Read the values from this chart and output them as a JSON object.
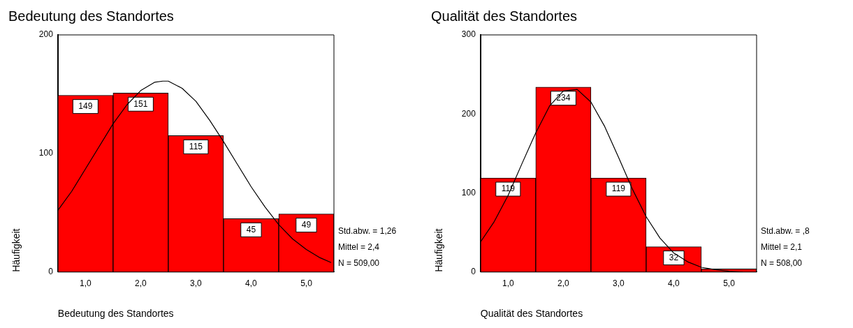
{
  "chart_data": [
    {
      "type": "histogram",
      "title": "Bedeutung des Standortes",
      "xlabel": "Bedeutung des Standortes",
      "ylabel": "Häufigkeit",
      "bins": [
        0.5,
        1.5,
        2.5,
        3.5,
        4.5,
        5.5
      ],
      "values": [
        149,
        151,
        115,
        45,
        49
      ],
      "color": "#ff0000",
      "value_labels": [
        "149",
        "151",
        "115",
        "45",
        "49"
      ],
      "series": [
        {
          "type": "line",
          "color": "#000000",
          "x": [
            0.5,
            0.75,
            1,
            1.25,
            1.5,
            1.75,
            2,
            2.25,
            2.4,
            2.5,
            2.75,
            3,
            3.25,
            3.5,
            3.75,
            4,
            4.25,
            4.5,
            4.75,
            5,
            5.25,
            5.45
          ],
          "values": [
            52,
            68,
            87,
            106,
            125,
            141,
            153,
            160,
            161,
            161,
            155,
            144,
            128,
            110,
            91,
            72,
            55,
            40,
            28,
            19,
            12,
            8
          ]
        }
      ],
      "marker": "none",
      "xlim": [
        0.5,
        5.5
      ],
      "xticks": [
        {
          "value": 1,
          "label": "1,0"
        },
        {
          "value": 2,
          "label": "2,0"
        },
        {
          "value": 3,
          "label": "3,0"
        },
        {
          "value": 4,
          "label": "4,0"
        },
        {
          "value": 5,
          "label": "5,0"
        }
      ],
      "ylim": [
        0,
        200
      ],
      "yticks": [
        0,
        100,
        200
      ],
      "grid": false,
      "legend": false,
      "annotations": [
        "Std.abw. = 1,26",
        "Mittel = 2,4",
        "N = 509,00"
      ]
    },
    {
      "type": "histogram",
      "title": "Qualität des Standortes",
      "xlabel": "Qualität des Standortes",
      "ylabel": "Häufigkeit",
      "bins": [
        0.5,
        1.5,
        2.5,
        3.5,
        4.5,
        5.5
      ],
      "values": [
        119,
        234,
        119,
        32,
        4
      ],
      "color": "#ff0000",
      "value_labels": [
        "119",
        "234",
        "119",
        "32",
        null
      ],
      "series": [
        {
          "type": "line",
          "color": "#000000",
          "x": [
            0.5,
            0.75,
            1,
            1.25,
            1.5,
            1.75,
            2,
            2.25,
            2.5,
            2.75,
            3,
            3.25,
            3.5,
            3.75,
            4,
            4.25,
            4.5,
            4.75,
            5,
            5.25
          ],
          "values": [
            38,
            64,
            97,
            137,
            176,
            210,
            229,
            231,
            215,
            184,
            145,
            105,
            70,
            43,
            24,
            13,
            6,
            3,
            1,
            0
          ]
        }
      ],
      "marker": "none",
      "xlim": [
        0.5,
        5.5
      ],
      "xticks": [
        {
          "value": 1,
          "label": "1,0"
        },
        {
          "value": 2,
          "label": "2,0"
        },
        {
          "value": 3,
          "label": "3,0"
        },
        {
          "value": 4,
          "label": "4,0"
        },
        {
          "value": 5,
          "label": "5,0"
        }
      ],
      "ylim": [
        0,
        300
      ],
      "yticks": [
        0,
        100,
        200,
        300
      ],
      "grid": false,
      "legend": false,
      "annotations": [
        "Std.abw. = ,8",
        "Mittel = 2,1",
        "N = 508,00"
      ]
    }
  ]
}
